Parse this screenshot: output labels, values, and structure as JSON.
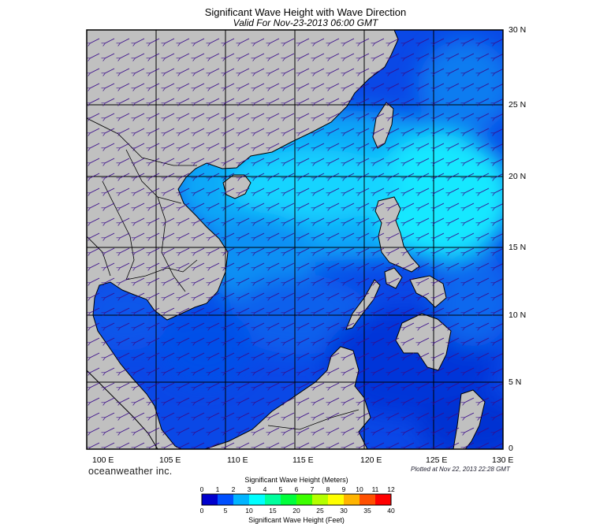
{
  "title": "Significant Wave Height with Wave Direction",
  "subtitle": "Valid For Nov-23-2013 06:00 GMT",
  "latitude_labels": [
    "30 N",
    "25 N",
    "20 N",
    "15 N",
    "10 N",
    "5 N",
    "0"
  ],
  "longitude_labels": [
    "100 E",
    "105 E",
    "110 E",
    "115 E",
    "120 E",
    "125 E",
    "130 E"
  ],
  "brand": "oceanweather inc.",
  "plotted_stamp": "Plotted at Nov 22, 2013 22:28 GMT",
  "colorbar": {
    "title_top": "Significant Wave Height (Meters)",
    "title_bottom": "Significant Wave Height (Feet)",
    "meters_ticks": [
      "0",
      "1",
      "2",
      "3",
      "4",
      "5",
      "6",
      "7",
      "8",
      "9",
      "10",
      "11",
      "12"
    ],
    "feet_ticks": [
      "0",
      "5",
      "10",
      "15",
      "20",
      "25",
      "30",
      "35",
      "40"
    ],
    "colors": [
      "#0000cd",
      "#0050ff",
      "#00b4ff",
      "#00ffff",
      "#00ff9e",
      "#00ff3c",
      "#3cff00",
      "#b4ff00",
      "#ffff00",
      "#ffb400",
      "#ff5000",
      "#ff0000"
    ]
  },
  "map": {
    "extent_lon": [
      100,
      130
    ],
    "extent_lat": [
      0,
      30
    ],
    "land_color": "#c0c0c0",
    "wave_direction": "northeasterly swell propagating toward the southwest"
  }
}
